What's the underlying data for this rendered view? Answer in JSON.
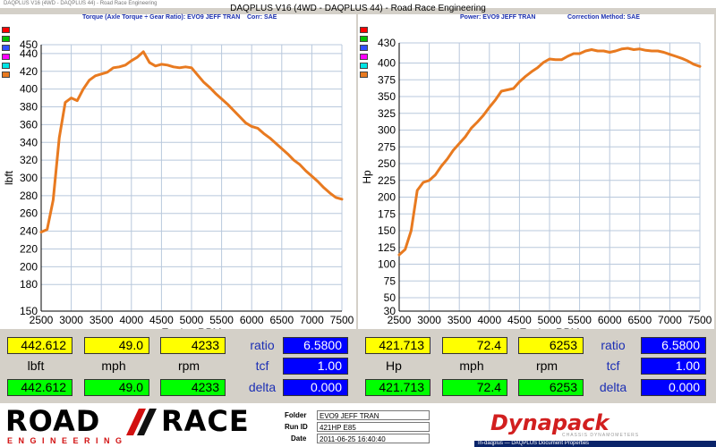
{
  "window": {
    "title_small": "DAQPLUS V16 (4WD - DAQPLUS 44) - Road Race Engineering",
    "title": "DAQPLUS V16 (4WD - DAQPLUS 44) - Road Race Engineering"
  },
  "left_panel": {
    "header_left": "Torque (Axle Torque ÷ Gear Ratio): EVO9 JEFF TRAN",
    "header_right": "Corr: SAE"
  },
  "right_panel": {
    "header_left": "Power: EVO9 JEFF TRAN",
    "header_right": "Correction Method: SAE"
  },
  "swatch_colors": [
    "#ff0000",
    "#00c000",
    "#3050ff",
    "#ff00ff",
    "#00e5e5",
    "#e87a20"
  ],
  "chart_data": [
    {
      "type": "line",
      "title": "",
      "xlabel": "Engine RPM",
      "ylabel": "lbft",
      "xlim": [
        2500,
        7500
      ],
      "ylim": [
        150,
        450
      ],
      "xticks": [
        2500,
        3000,
        3500,
        4000,
        4500,
        5000,
        5500,
        6000,
        6500,
        7000,
        7500
      ],
      "yticks": [
        150,
        180,
        200,
        220,
        240,
        260,
        280,
        300,
        320,
        340,
        360,
        380,
        400,
        420,
        440,
        450
      ],
      "grid": true,
      "color": "#e87a20",
      "series": [
        {
          "x": [
            2500,
            2600,
            2700,
            2800,
            2900,
            3000,
            3100,
            3200,
            3300,
            3400,
            3500,
            3600,
            3700,
            3800,
            3900,
            4000,
            4100,
            4200,
            4300,
            4400,
            4500,
            4600,
            4700,
            4800,
            4900,
            5000,
            5100,
            5200,
            5300,
            5400,
            5500,
            5600,
            5700,
            5800,
            5900,
            6000,
            6100,
            6200,
            6300,
            6400,
            6500,
            6600,
            6700,
            6800,
            6900,
            7000,
            7100,
            7200,
            7300,
            7400,
            7500
          ],
          "values": [
            239,
            242,
            275,
            345,
            385,
            390,
            387,
            400,
            410,
            415,
            417,
            419,
            424,
            425,
            427,
            432,
            436,
            442,
            430,
            426,
            428,
            427,
            425,
            424,
            425,
            424,
            416,
            408,
            402,
            395,
            389,
            383,
            376,
            369,
            362,
            358,
            356,
            350,
            345,
            339,
            333,
            327,
            320,
            315,
            308,
            302,
            296,
            289,
            283,
            278,
            276
          ]
        }
      ]
    },
    {
      "type": "line",
      "title": "",
      "xlabel": "Engine RPM",
      "ylabel": "Hp",
      "xlim": [
        2500,
        7500
      ],
      "ylim": [
        30,
        430
      ],
      "xticks": [
        2500,
        3000,
        3500,
        4000,
        4500,
        5000,
        5500,
        6000,
        6500,
        7000,
        7500
      ],
      "yticks": [
        30,
        50,
        75,
        100,
        125,
        150,
        175,
        200,
        225,
        250,
        275,
        300,
        325,
        350,
        375,
        400,
        430
      ],
      "grid": true,
      "color": "#e87a20",
      "series": [
        {
          "x": [
            2500,
            2600,
            2700,
            2800,
            2900,
            3000,
            3100,
            3200,
            3300,
            3400,
            3500,
            3600,
            3700,
            3800,
            3900,
            4000,
            4100,
            4200,
            4300,
            4400,
            4500,
            4600,
            4700,
            4800,
            4900,
            5000,
            5100,
            5200,
            5300,
            5400,
            5500,
            5600,
            5700,
            5800,
            5900,
            6000,
            6100,
            6200,
            6300,
            6400,
            6500,
            6600,
            6700,
            6800,
            6900,
            7000,
            7100,
            7200,
            7300,
            7400,
            7500
          ],
          "values": [
            114,
            122,
            150,
            210,
            222,
            225,
            233,
            246,
            257,
            270,
            280,
            290,
            303,
            312,
            322,
            334,
            345,
            358,
            360,
            362,
            372,
            380,
            387,
            393,
            401,
            406,
            405,
            405,
            410,
            414,
            414,
            418,
            420,
            418,
            418,
            416,
            418,
            421,
            422,
            420,
            421,
            419,
            418,
            418,
            416,
            413,
            410,
            407,
            403,
            398,
            395
          ]
        }
      ]
    }
  ],
  "left_readout": {
    "row1": [
      "442.612",
      "49.0",
      "4233"
    ],
    "labels": [
      "lbft",
      "mph",
      "rpm"
    ],
    "row3": [
      "442.612",
      "49.0",
      "4233"
    ],
    "side_labels": [
      "ratio",
      "tcf",
      "delta"
    ],
    "side_values": [
      "6.5800",
      "1.00",
      "0.000"
    ]
  },
  "right_readout": {
    "row1": [
      "421.713",
      "72.4",
      "6253"
    ],
    "labels": [
      "Hp",
      "mph",
      "rpm"
    ],
    "row3": [
      "421.713",
      "72.4",
      "6253"
    ],
    "side_labels": [
      "ratio",
      "tcf",
      "delta"
    ],
    "side_values": [
      "6.5800",
      "1.00",
      "0.000"
    ]
  },
  "footer": {
    "logo_top_left": "ROAD",
    "logo_top_right": "RACE",
    "logo_bottom": "E N G I N E E R I N G",
    "folder_label": "Folder",
    "folder_value": "EVO9 JEFF TRAN",
    "runid_label": "Run ID",
    "runid_value": "421HP E85",
    "date_label": "Date",
    "date_value": "2011-06-25 16:40:40",
    "dynapack_logo": "Dynapack",
    "dynapack_sub": "CHASSIS DYNAMOMETERS",
    "taskbar_text": "In-daqplus — DAQPLUS Document Properties"
  }
}
